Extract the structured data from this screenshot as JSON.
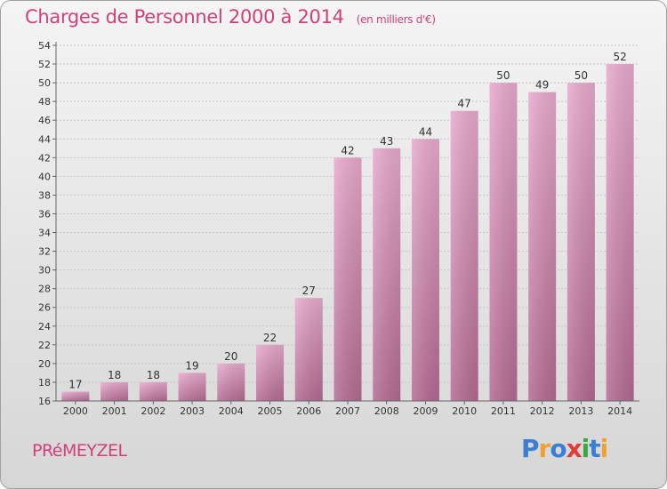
{
  "header": {
    "title": "Charges de Personnel 2000 à 2014",
    "subtitle": "(en milliers d'€)"
  },
  "footer": {
    "commune": "PRéMEYZEL",
    "logo_text": "Proxiti",
    "logo_letters": [
      {
        "ch": "P",
        "color": "#3a7fd5"
      },
      {
        "ch": "r",
        "color": "#f0a030"
      },
      {
        "ch": "o",
        "color": "#3a7fd5"
      },
      {
        "ch": "x",
        "color": "#e23a3a"
      },
      {
        "ch": "i",
        "color": "#3aa83a"
      },
      {
        "ch": "t",
        "color": "#3a7fd5"
      },
      {
        "ch": "i",
        "color": "#f0a030"
      }
    ]
  },
  "colors": {
    "bar_top": "#e7a9cb",
    "bar_bottom": "#b36a91",
    "title": "#d0407a",
    "grid": "#c8c8c8"
  },
  "chart_data": {
    "type": "bar",
    "title": "Charges de Personnel 2000 à 2014",
    "subtitle": "(en milliers d'€)",
    "xlabel": "",
    "ylabel": "",
    "categories": [
      "2000",
      "2001",
      "2002",
      "2003",
      "2004",
      "2005",
      "2006",
      "2007",
      "2008",
      "2009",
      "2010",
      "2011",
      "2012",
      "2013",
      "2014"
    ],
    "values": [
      17,
      18,
      18,
      19,
      20,
      22,
      27,
      42,
      43,
      44,
      47,
      50,
      49,
      50,
      52
    ],
    "ylim": [
      16,
      54
    ],
    "yticks": [
      16,
      18,
      20,
      22,
      24,
      26,
      28,
      30,
      32,
      34,
      36,
      38,
      40,
      42,
      44,
      46,
      48,
      50,
      52,
      54
    ],
    "grid": true,
    "data_labels": true
  }
}
